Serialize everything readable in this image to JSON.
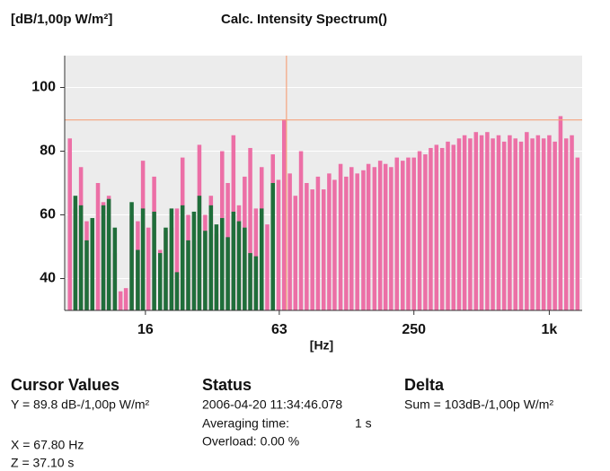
{
  "chart_data": {
    "type": "bar",
    "title": "Calc. Intensity Spectrum()",
    "y_label": "[dB/1,00p W/m²]",
    "x_label": "[Hz]",
    "x": [
      7.38,
      7.81,
      8.27,
      8.77,
      9.29,
      9.84,
      10.4,
      11.0,
      11.7,
      12.4,
      13.1,
      13.9,
      14.8,
      15.6,
      16.5,
      17.5,
      18.6,
      19.7,
      20.9,
      22.1,
      23.4,
      24.8,
      26.3,
      27.8,
      29.5,
      31.3,
      33.1,
      35.1,
      37.2,
      39.4,
      41.7,
      44.2,
      46.8,
      49.6,
      52.6,
      55.7,
      59.0,
      62.5,
      66.2,
      70.2,
      74.3,
      78.7,
      83.4,
      88.4,
      93.6,
      99.2,
      105,
      111,
      118,
      125,
      132,
      140,
      149,
      157,
      167,
      177,
      187,
      198,
      210,
      223,
      236,
      250,
      265,
      281,
      297,
      315,
      334,
      354,
      375,
      397,
      420,
      445,
      472,
      500,
      530,
      561,
      595,
      630,
      667,
      707,
      749,
      794,
      841,
      891,
      944,
      1000,
      1059,
      1122,
      1189,
      1260,
      1335
    ],
    "series": [
      {
        "color": "#ec6fa6",
        "values": [
          84,
          62,
          75,
          58,
          52,
          70,
          64,
          66,
          48,
          36,
          37,
          60,
          58,
          77,
          56,
          72,
          49,
          55,
          56,
          62,
          78,
          60,
          52,
          82,
          60,
          66,
          54,
          80,
          70,
          85,
          63,
          72,
          81,
          62,
          75,
          57,
          79,
          71,
          90,
          73,
          66,
          80,
          70,
          68,
          72,
          68,
          73,
          71,
          76,
          72,
          75,
          73,
          74,
          76,
          75,
          77,
          76,
          75,
          78,
          77,
          78,
          78,
          80,
          79,
          81,
          82,
          81,
          83,
          82,
          84,
          85,
          84,
          86,
          85,
          86,
          84,
          85,
          83,
          85,
          84,
          83,
          86,
          84,
          85,
          84,
          85,
          83,
          91,
          84,
          85,
          78
        ]
      },
      {
        "color": "#1f6e3a",
        "values": [
          null,
          66,
          63,
          52,
          59,
          null,
          63,
          65,
          56,
          null,
          null,
          64,
          49,
          62,
          null,
          61,
          48,
          56,
          62,
          42,
          63,
          52,
          61,
          66,
          55,
          63,
          57,
          59,
          53,
          61,
          58,
          56,
          48,
          47,
          62,
          null,
          70,
          null,
          null,
          null,
          null,
          null,
          null,
          null,
          null,
          null,
          null,
          null,
          null,
          null,
          null,
          null,
          null,
          null,
          null,
          null,
          null,
          null,
          null,
          null,
          null,
          null,
          null,
          null,
          null,
          null,
          null,
          null,
          null,
          null,
          null,
          null,
          null,
          null,
          null,
          null,
          null,
          null,
          null,
          null,
          null,
          null,
          null,
          null,
          null,
          null,
          null,
          null,
          null,
          null,
          null
        ]
      }
    ],
    "xlim": [
      7,
      1400
    ],
    "log_x": true,
    "xticks": [
      16,
      63,
      250,
      {
        "value": 1000,
        "label": "1k"
      }
    ],
    "ylim": [
      30,
      110
    ],
    "yticks": [
      40,
      60,
      80,
      100
    ],
    "grid": true,
    "cursor": {
      "x": 67.8,
      "y": 89.8,
      "color": "#f5a37e"
    }
  },
  "panel": {
    "cursor_values": {
      "title": "Cursor Values",
      "y": "Y = 89.8 dB-/1,00p W/m²",
      "x": "X = 67.80 Hz",
      "z": "Z = 37.10 s"
    },
    "status": {
      "title": "Status",
      "timestamp": "2006-04-20  11:34:46.078",
      "averaging_label": "Averaging time:",
      "averaging_value": "1 s",
      "overload": "Overload:  0.00 %"
    },
    "delta": {
      "title": "Delta",
      "sum": "Sum = 103dB-/1,00p W/m²"
    }
  }
}
